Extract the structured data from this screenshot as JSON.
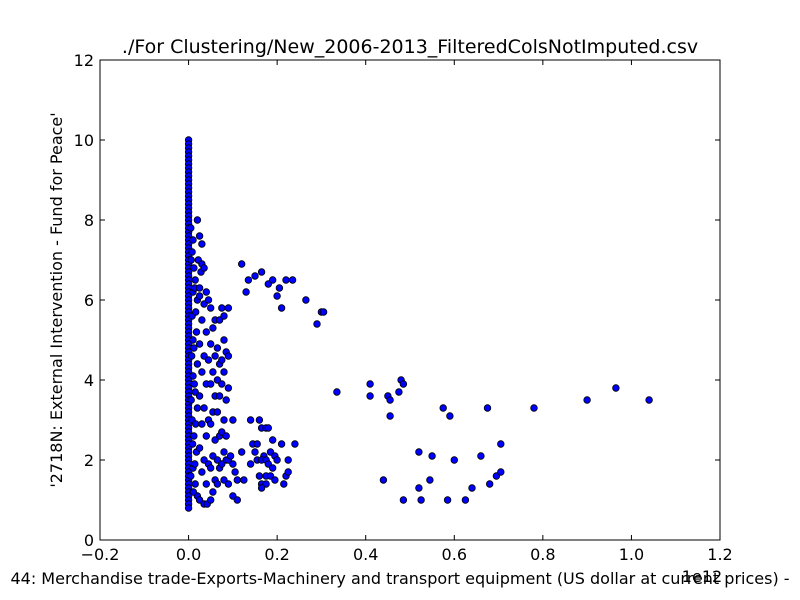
{
  "chart_data": {
    "type": "scatter",
    "title": "./For Clustering/New_2006-2013_FilteredColsNotImputed.csv",
    "xlabel": "44: Merchandise trade-Exports-Machinery and transport equipment (US dollar at current prices) -",
    "ylabel": "'2718N: External Intervention - Fund for Peace'",
    "x_offset_text": "1e12",
    "xlim": [
      -0.2,
      1.2
    ],
    "ylim": [
      0,
      12
    ],
    "x_ticks": [
      -0.2,
      0.0,
      0.2,
      0.4,
      0.6,
      0.8,
      1.0,
      1.2
    ],
    "x_tick_labels": [
      "−0.2",
      "0.0",
      "0.2",
      "0.4",
      "0.6",
      "0.8",
      "1.0",
      "1.2"
    ],
    "y_ticks": [
      0,
      2,
      4,
      6,
      8,
      10,
      12
    ],
    "y_tick_labels": [
      "0",
      "2",
      "4",
      "6",
      "8",
      "10",
      "12"
    ],
    "grid": false,
    "marker_color": "#0000ff",
    "marker_edge_color": "#000000",
    "series": [
      {
        "points": [
          [
            0.0,
            10.0
          ],
          [
            0.0,
            9.9
          ],
          [
            0.0,
            9.8
          ],
          [
            0.0,
            9.7
          ],
          [
            0.0,
            9.6
          ],
          [
            0.0,
            9.5
          ],
          [
            0.0,
            9.4
          ],
          [
            0.0,
            9.3
          ],
          [
            0.0,
            9.2
          ],
          [
            0.0,
            9.1
          ],
          [
            0.0,
            9.0
          ],
          [
            0.0,
            8.9
          ],
          [
            0.0,
            8.8
          ],
          [
            0.0,
            8.7
          ],
          [
            0.0,
            8.6
          ],
          [
            0.0,
            8.5
          ],
          [
            0.0,
            8.4
          ],
          [
            0.0,
            8.3
          ],
          [
            0.0,
            8.2
          ],
          [
            0.0,
            8.1
          ],
          [
            0.0,
            8.0
          ],
          [
            0.0,
            7.9
          ],
          [
            0.0,
            7.8
          ],
          [
            0.0,
            7.7
          ],
          [
            0.0,
            7.6
          ],
          [
            0.0,
            7.5
          ],
          [
            0.0,
            7.4
          ],
          [
            0.0,
            7.3
          ],
          [
            0.0,
            7.2
          ],
          [
            0.0,
            7.1
          ],
          [
            0.0,
            7.0
          ],
          [
            0.0,
            6.9
          ],
          [
            0.0,
            6.8
          ],
          [
            0.0,
            6.7
          ],
          [
            0.0,
            6.6
          ],
          [
            0.0,
            6.5
          ],
          [
            0.0,
            6.4
          ],
          [
            0.0,
            6.3
          ],
          [
            0.0,
            6.2
          ],
          [
            0.0,
            6.1
          ],
          [
            0.0,
            6.0
          ],
          [
            0.0,
            5.9
          ],
          [
            0.0,
            5.8
          ],
          [
            0.0,
            5.7
          ],
          [
            0.0,
            5.6
          ],
          [
            0.0,
            5.5
          ],
          [
            0.0,
            5.4
          ],
          [
            0.0,
            5.3
          ],
          [
            0.0,
            5.2
          ],
          [
            0.0,
            5.1
          ],
          [
            0.0,
            5.0
          ],
          [
            0.0,
            4.9
          ],
          [
            0.0,
            4.8
          ],
          [
            0.0,
            4.7
          ],
          [
            0.0,
            4.6
          ],
          [
            0.0,
            4.5
          ],
          [
            0.0,
            4.4
          ],
          [
            0.0,
            4.3
          ],
          [
            0.0,
            4.2
          ],
          [
            0.0,
            4.1
          ],
          [
            0.0,
            4.0
          ],
          [
            0.0,
            3.9
          ],
          [
            0.0,
            3.8
          ],
          [
            0.0,
            3.7
          ],
          [
            0.0,
            3.6
          ],
          [
            0.0,
            3.5
          ],
          [
            0.0,
            3.4
          ],
          [
            0.0,
            3.3
          ],
          [
            0.0,
            3.2
          ],
          [
            0.0,
            3.1
          ],
          [
            0.0,
            3.0
          ],
          [
            0.0,
            2.9
          ],
          [
            0.0,
            2.8
          ],
          [
            0.0,
            2.7
          ],
          [
            0.0,
            2.6
          ],
          [
            0.0,
            2.5
          ],
          [
            0.0,
            2.4
          ],
          [
            0.0,
            2.3
          ],
          [
            0.0,
            2.2
          ],
          [
            0.0,
            2.1
          ],
          [
            0.0,
            2.0
          ],
          [
            0.0,
            1.9
          ],
          [
            0.0,
            1.8
          ],
          [
            0.0,
            1.7
          ],
          [
            0.0,
            1.6
          ],
          [
            0.0,
            1.5
          ],
          [
            0.0,
            1.4
          ],
          [
            0.0,
            1.3
          ],
          [
            0.0,
            1.2
          ],
          [
            0.0,
            1.1
          ],
          [
            0.0,
            1.0
          ],
          [
            0.0,
            0.9
          ],
          [
            0.0,
            0.8
          ],
          [
            0.005,
            7.8
          ],
          [
            0.01,
            7.5
          ],
          [
            0.008,
            7.2
          ],
          [
            0.012,
            6.8
          ],
          [
            0.015,
            6.5
          ],
          [
            0.01,
            6.2
          ],
          [
            0.02,
            6.0
          ],
          [
            0.008,
            5.6
          ],
          [
            0.018,
            5.2
          ],
          [
            0.012,
            4.8
          ],
          [
            0.02,
            4.4
          ],
          [
            0.01,
            4.1
          ],
          [
            0.015,
            3.7
          ],
          [
            0.02,
            3.3
          ],
          [
            0.008,
            3.0
          ],
          [
            0.012,
            2.6
          ],
          [
            0.018,
            2.2
          ],
          [
            0.01,
            1.8
          ],
          [
            0.015,
            1.4
          ],
          [
            0.02,
            1.1
          ],
          [
            0.006,
            7.0
          ],
          [
            0.014,
            6.3
          ],
          [
            0.016,
            5.7
          ],
          [
            0.01,
            5.0
          ],
          [
            0.007,
            4.6
          ],
          [
            0.013,
            3.9
          ],
          [
            0.006,
            3.5
          ],
          [
            0.016,
            2.9
          ],
          [
            0.009,
            2.4
          ],
          [
            0.014,
            1.9
          ],
          [
            0.005,
            1.6
          ],
          [
            0.011,
            1.2
          ],
          [
            0.02,
            8.0
          ],
          [
            0.025,
            7.6
          ],
          [
            0.03,
            7.4
          ],
          [
            0.022,
            7.0
          ],
          [
            0.028,
            6.7
          ],
          [
            0.025,
            6.3
          ],
          [
            0.03,
            6.9
          ],
          [
            0.035,
            6.8
          ],
          [
            0.04,
            6.2
          ],
          [
            0.025,
            6.1
          ],
          [
            0.035,
            5.9
          ],
          [
            0.03,
            5.5
          ],
          [
            0.04,
            5.2
          ],
          [
            0.025,
            4.9
          ],
          [
            0.035,
            4.6
          ],
          [
            0.03,
            4.2
          ],
          [
            0.04,
            3.9
          ],
          [
            0.025,
            3.6
          ],
          [
            0.035,
            3.3
          ],
          [
            0.03,
            2.9
          ],
          [
            0.04,
            2.6
          ],
          [
            0.025,
            2.3
          ],
          [
            0.035,
            2.0
          ],
          [
            0.03,
            1.7
          ],
          [
            0.04,
            1.4
          ],
          [
            0.025,
            1.0
          ],
          [
            0.035,
            0.9
          ],
          [
            0.045,
            6.0
          ],
          [
            0.045,
            4.5
          ],
          [
            0.045,
            3.0
          ],
          [
            0.045,
            1.9
          ],
          [
            0.042,
            0.9
          ],
          [
            0.05,
            5.8
          ],
          [
            0.06,
            5.5
          ],
          [
            0.055,
            5.3
          ],
          [
            0.05,
            4.9
          ],
          [
            0.06,
            4.6
          ],
          [
            0.055,
            4.2
          ],
          [
            0.05,
            3.9
          ],
          [
            0.06,
            3.6
          ],
          [
            0.055,
            3.2
          ],
          [
            0.05,
            2.9
          ],
          [
            0.06,
            2.5
          ],
          [
            0.055,
            2.1
          ],
          [
            0.05,
            1.8
          ],
          [
            0.06,
            1.5
          ],
          [
            0.055,
            1.2
          ],
          [
            0.05,
            1.0
          ],
          [
            0.065,
            4.8
          ],
          [
            0.07,
            4.4
          ],
          [
            0.065,
            4.0
          ],
          [
            0.07,
            3.6
          ],
          [
            0.065,
            3.2
          ],
          [
            0.07,
            2.6
          ],
          [
            0.065,
            2.0
          ],
          [
            0.07,
            1.8
          ],
          [
            0.065,
            1.4
          ],
          [
            0.07,
            5.5
          ],
          [
            0.075,
            5.8
          ],
          [
            0.08,
            5.6
          ],
          [
            0.08,
            5.0
          ],
          [
            0.075,
            4.5
          ],
          [
            0.085,
            4.7
          ],
          [
            0.08,
            4.2
          ],
          [
            0.075,
            3.9
          ],
          [
            0.085,
            3.5
          ],
          [
            0.08,
            3.0
          ],
          [
            0.075,
            2.7
          ],
          [
            0.085,
            2.6
          ],
          [
            0.08,
            2.2
          ],
          [
            0.075,
            1.9
          ],
          [
            0.085,
            2.0
          ],
          [
            0.08,
            1.5
          ],
          [
            0.09,
            5.8
          ],
          [
            0.09,
            4.6
          ],
          [
            0.09,
            3.8
          ],
          [
            0.09,
            2.0
          ],
          [
            0.09,
            1.4
          ],
          [
            0.1,
            3.0
          ],
          [
            0.095,
            2.1
          ],
          [
            0.1,
            1.9
          ],
          [
            0.105,
            1.7
          ],
          [
            0.1,
            1.1
          ],
          [
            0.11,
            1.5
          ],
          [
            0.11,
            1.0
          ],
          [
            0.12,
            2.2
          ],
          [
            0.125,
            1.5
          ],
          [
            0.12,
            6.9
          ],
          [
            0.13,
            6.2
          ],
          [
            0.135,
            6.5
          ],
          [
            0.15,
            6.6
          ],
          [
            0.165,
            6.7
          ],
          [
            0.18,
            6.4
          ],
          [
            0.19,
            6.5
          ],
          [
            0.2,
            6.1
          ],
          [
            0.205,
            6.3
          ],
          [
            0.21,
            5.8
          ],
          [
            0.22,
            6.5
          ],
          [
            0.235,
            6.5
          ],
          [
            0.265,
            6.0
          ],
          [
            0.29,
            5.4
          ],
          [
            0.3,
            5.7
          ],
          [
            0.305,
            5.7
          ],
          [
            0.14,
            3.0
          ],
          [
            0.16,
            3.0
          ],
          [
            0.165,
            2.8
          ],
          [
            0.175,
            2.8
          ],
          [
            0.18,
            2.8
          ],
          [
            0.145,
            2.4
          ],
          [
            0.155,
            2.4
          ],
          [
            0.19,
            2.5
          ],
          [
            0.21,
            2.4
          ],
          [
            0.24,
            2.4
          ],
          [
            0.15,
            2.2
          ],
          [
            0.17,
            2.1
          ],
          [
            0.185,
            2.2
          ],
          [
            0.195,
            2.1
          ],
          [
            0.155,
            2.0
          ],
          [
            0.165,
            2.0
          ],
          [
            0.175,
            2.0
          ],
          [
            0.18,
            1.9
          ],
          [
            0.2,
            2.0
          ],
          [
            0.225,
            2.0
          ],
          [
            0.14,
            1.9
          ],
          [
            0.19,
            1.8
          ],
          [
            0.16,
            1.6
          ],
          [
            0.175,
            1.6
          ],
          [
            0.185,
            1.6
          ],
          [
            0.195,
            1.5
          ],
          [
            0.22,
            1.6
          ],
          [
            0.225,
            1.7
          ],
          [
            0.165,
            1.4
          ],
          [
            0.175,
            1.4
          ],
          [
            0.215,
            1.4
          ],
          [
            0.165,
            1.3
          ],
          [
            0.335,
            3.7
          ],
          [
            0.41,
            3.9
          ],
          [
            0.41,
            3.6
          ],
          [
            0.45,
            3.6
          ],
          [
            0.455,
            3.5
          ],
          [
            0.455,
            3.1
          ],
          [
            0.475,
            3.7
          ],
          [
            0.48,
            4.0
          ],
          [
            0.485,
            3.9
          ],
          [
            0.44,
            1.5
          ],
          [
            0.485,
            1.0
          ],
          [
            0.52,
            2.2
          ],
          [
            0.52,
            1.3
          ],
          [
            0.525,
            1.0
          ],
          [
            0.55,
            2.1
          ],
          [
            0.545,
            1.5
          ],
          [
            0.575,
            3.3
          ],
          [
            0.59,
            3.1
          ],
          [
            0.585,
            1.0
          ],
          [
            0.6,
            2.0
          ],
          [
            0.625,
            1.0
          ],
          [
            0.64,
            1.3
          ],
          [
            0.66,
            2.1
          ],
          [
            0.675,
            3.3
          ],
          [
            0.68,
            1.4
          ],
          [
            0.695,
            1.6
          ],
          [
            0.705,
            1.7
          ],
          [
            0.705,
            2.4
          ],
          [
            0.78,
            3.3
          ],
          [
            0.9,
            3.5
          ],
          [
            0.965,
            3.8
          ],
          [
            1.04,
            3.5
          ]
        ]
      }
    ]
  }
}
